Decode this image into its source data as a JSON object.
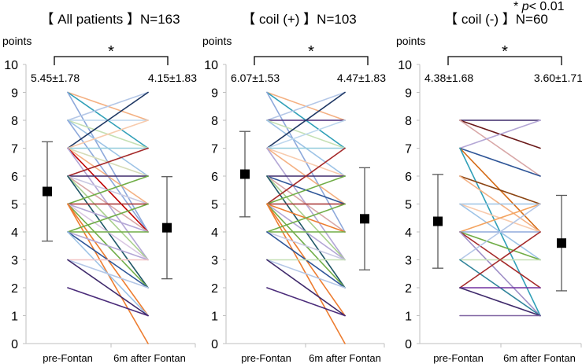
{
  "significance_note": {
    "star": "*",
    "p_label": "p",
    "p_text": "< 0.01"
  },
  "chart_data": [
    {
      "type": "line",
      "title": "【 All patients 】N=163",
      "ylabel": "points",
      "xlabel": "",
      "categories": [
        "pre-Fontan",
        "6m after Fontan"
      ],
      "ylim": [
        0,
        10
      ],
      "yticks": [
        0,
        1,
        2,
        3,
        4,
        5,
        6,
        7,
        8,
        9,
        10
      ],
      "grid": false,
      "significance": "*",
      "summary": [
        {
          "label": "5.45±1.78",
          "mean": 5.45,
          "sd": 1.78
        },
        {
          "label": "4.15±1.83",
          "mean": 4.15,
          "sd": 1.83
        }
      ],
      "series": [
        {
          "values": [
            9,
            8
          ],
          "color": "#f4b183"
        },
        {
          "values": [
            9,
            7
          ],
          "color": "#31a0b8"
        },
        {
          "values": [
            9,
            4
          ],
          "color": "#8ea9db"
        },
        {
          "values": [
            8,
            9
          ],
          "color": "#b4c7e7"
        },
        {
          "values": [
            8,
            8
          ],
          "color": "#bdd7ee"
        },
        {
          "values": [
            8,
            7
          ],
          "color": "#c5e0b4"
        },
        {
          "values": [
            8,
            6
          ],
          "color": "#9dc3e6"
        },
        {
          "values": [
            8,
            4
          ],
          "color": "#8faadc"
        },
        {
          "values": [
            7,
            9
          ],
          "color": "#1f3864"
        },
        {
          "values": [
            7,
            8
          ],
          "color": "#f8cbad"
        },
        {
          "values": [
            7,
            7
          ],
          "color": "#92cddc"
        },
        {
          "values": [
            7,
            6
          ],
          "color": "#d6dcb8"
        },
        {
          "values": [
            7,
            5
          ],
          "color": "#f4b183"
        },
        {
          "values": [
            7,
            4
          ],
          "color": "#c00000"
        },
        {
          "values": [
            7,
            3
          ],
          "color": "#b4a7d6"
        },
        {
          "values": [
            6,
            7
          ],
          "color": "#a52a2a"
        },
        {
          "values": [
            6,
            6
          ],
          "color": "#3f2a6b"
        },
        {
          "values": [
            6,
            5
          ],
          "color": "#c9c9e2"
        },
        {
          "values": [
            6,
            4
          ],
          "color": "#d8a7a7"
        },
        {
          "values": [
            6,
            3
          ],
          "color": "#a9d08e"
        },
        {
          "values": [
            6,
            2
          ],
          "color": "#215868"
        },
        {
          "values": [
            5,
            6
          ],
          "color": "#70ad47"
        },
        {
          "values": [
            5,
            5
          ],
          "color": "#a52a2a"
        },
        {
          "values": [
            5,
            4
          ],
          "color": "#b4a7d6"
        },
        {
          "values": [
            5,
            3
          ],
          "color": "#d9c7e2"
        },
        {
          "values": [
            5,
            2
          ],
          "color": "#70ad47"
        },
        {
          "values": [
            5,
            1
          ],
          "color": "#ed7d31"
        },
        {
          "values": [
            5,
            0
          ],
          "color": "#ed7d31"
        },
        {
          "values": [
            4,
            5
          ],
          "color": "#70ad47"
        },
        {
          "values": [
            4,
            4
          ],
          "color": "#70ad47"
        },
        {
          "values": [
            4,
            3
          ],
          "color": "#b4a7d6"
        },
        {
          "values": [
            4,
            2
          ],
          "color": "#2e5597"
        },
        {
          "values": [
            4,
            1
          ],
          "color": "#9dc3e6"
        },
        {
          "values": [
            3,
            3
          ],
          "color": "#f2c4c4"
        },
        {
          "values": [
            3,
            2
          ],
          "color": "#b4c7e7"
        },
        {
          "values": [
            3,
            1
          ],
          "color": "#3f2a6b"
        },
        {
          "values": [
            2,
            1
          ],
          "color": "#4b2c7a"
        }
      ]
    },
    {
      "type": "line",
      "title": "【 coil (+) 】N=103",
      "ylabel": "points",
      "xlabel": "",
      "categories": [
        "pre-Fontan",
        "6m after Fontan"
      ],
      "ylim": [
        0,
        10
      ],
      "yticks": [
        0,
        1,
        2,
        3,
        4,
        5,
        6,
        7,
        8,
        9,
        10
      ],
      "grid": false,
      "significance": "*",
      "summary": [
        {
          "label": "6.07±1.53",
          "mean": 6.07,
          "sd": 1.53
        },
        {
          "label": "4.47±1.83",
          "mean": 4.47,
          "sd": 1.83
        }
      ],
      "series": [
        {
          "values": [
            9,
            8
          ],
          "color": "#f4b183"
        },
        {
          "values": [
            9,
            7
          ],
          "color": "#31a0b8"
        },
        {
          "values": [
            9,
            4
          ],
          "color": "#8ea9db"
        },
        {
          "values": [
            8,
            9
          ],
          "color": "#b4c7e7"
        },
        {
          "values": [
            8,
            8
          ],
          "color": "#4b2c7a"
        },
        {
          "values": [
            8,
            7
          ],
          "color": "#c5e0b4"
        },
        {
          "values": [
            8,
            6
          ],
          "color": "#9dc3e6"
        },
        {
          "values": [
            7,
            9
          ],
          "color": "#1f3864"
        },
        {
          "values": [
            7,
            8
          ],
          "color": "#bdd7ee"
        },
        {
          "values": [
            7,
            7
          ],
          "color": "#92cddc"
        },
        {
          "values": [
            7,
            6
          ],
          "color": "#f8cbad"
        },
        {
          "values": [
            7,
            5
          ],
          "color": "#f4b183"
        },
        {
          "values": [
            7,
            3
          ],
          "color": "#b4a7d6"
        },
        {
          "values": [
            6,
            6
          ],
          "color": "#3f2a6b"
        },
        {
          "values": [
            6,
            5
          ],
          "color": "#2e5597"
        },
        {
          "values": [
            6,
            4
          ],
          "color": "#d8a7a7"
        },
        {
          "values": [
            6,
            3
          ],
          "color": "#a9d08e"
        },
        {
          "values": [
            6,
            2
          ],
          "color": "#215868"
        },
        {
          "values": [
            5,
            7
          ],
          "color": "#a52a2a"
        },
        {
          "values": [
            5,
            6
          ],
          "color": "#70ad47"
        },
        {
          "values": [
            5,
            5
          ],
          "color": "#a52a2a"
        },
        {
          "values": [
            5,
            4
          ],
          "color": "#ed7d31"
        },
        {
          "values": [
            5,
            3
          ],
          "color": "#b4a7d6"
        },
        {
          "values": [
            5,
            2
          ],
          "color": "#70ad47"
        },
        {
          "values": [
            5,
            1
          ],
          "color": "#ed7d31"
        },
        {
          "values": [
            5,
            0
          ],
          "color": "#ed7d31"
        },
        {
          "values": [
            4,
            5
          ],
          "color": "#70ad47"
        },
        {
          "values": [
            4,
            4
          ],
          "color": "#70ad47"
        },
        {
          "values": [
            4,
            3
          ],
          "color": "#c9c9e2"
        },
        {
          "values": [
            4,
            2
          ],
          "color": "#2e5597"
        },
        {
          "values": [
            3,
            3
          ],
          "color": "#c5e0b4"
        },
        {
          "values": [
            3,
            2
          ],
          "color": "#b4c7e7"
        },
        {
          "values": [
            3,
            1
          ],
          "color": "#3f2a6b"
        },
        {
          "values": [
            2,
            1
          ],
          "color": "#4b2c7a"
        }
      ]
    },
    {
      "type": "line",
      "title": "【 coil (-) 】N=60",
      "ylabel": "points",
      "xlabel": "",
      "categories": [
        "pre-Fontan",
        "6m after Fontan"
      ],
      "ylim": [
        0,
        10
      ],
      "yticks": [
        0,
        1,
        2,
        3,
        4,
        5,
        6,
        7,
        8,
        9,
        10
      ],
      "grid": false,
      "significance": "*",
      "summary": [
        {
          "label": "4.38±1.68",
          "mean": 4.38,
          "sd": 1.68
        },
        {
          "label": "3.60±1.71",
          "mean": 3.6,
          "sd": 1.71
        }
      ],
      "series": [
        {
          "values": [
            8,
            8
          ],
          "color": "#3f2a6b"
        },
        {
          "values": [
            8,
            7
          ],
          "color": "#6b1a1a"
        },
        {
          "values": [
            8,
            6
          ],
          "color": "#d8a7a7"
        },
        {
          "values": [
            7,
            8
          ],
          "color": "#b4a7d6"
        },
        {
          "values": [
            7,
            6
          ],
          "color": "#2e5597"
        },
        {
          "values": [
            7,
            4
          ],
          "color": "#d46b16"
        },
        {
          "values": [
            7,
            1
          ],
          "color": "#31a0b8"
        },
        {
          "values": [
            6,
            5
          ],
          "color": "#8b4513"
        },
        {
          "values": [
            6,
            4
          ],
          "color": "#f4b183"
        },
        {
          "values": [
            5,
            5
          ],
          "color": "#9dc3e6"
        },
        {
          "values": [
            5,
            4
          ],
          "color": "#f8cbad"
        },
        {
          "values": [
            5,
            3
          ],
          "color": "#9dc3e6"
        },
        {
          "values": [
            4,
            5
          ],
          "color": "#f4a460"
        },
        {
          "values": [
            4,
            4
          ],
          "color": "#8faadc"
        },
        {
          "values": [
            4,
            3
          ],
          "color": "#70ad47"
        },
        {
          "values": [
            4,
            2
          ],
          "color": "#a52a2a"
        },
        {
          "values": [
            4,
            1
          ],
          "color": "#9f8fc7"
        },
        {
          "values": [
            3,
            5
          ],
          "color": "#b4c7e7"
        },
        {
          "values": [
            3,
            3
          ],
          "color": "#c5e0b4"
        },
        {
          "values": [
            3,
            1
          ],
          "color": "#31849b"
        },
        {
          "values": [
            2,
            4
          ],
          "color": "#a52a2a"
        },
        {
          "values": [
            2,
            2
          ],
          "color": "#7030a0"
        },
        {
          "values": [
            2,
            1
          ],
          "color": "#3f2a6b"
        },
        {
          "values": [
            1,
            1
          ],
          "color": "#8064a2"
        }
      ]
    }
  ]
}
